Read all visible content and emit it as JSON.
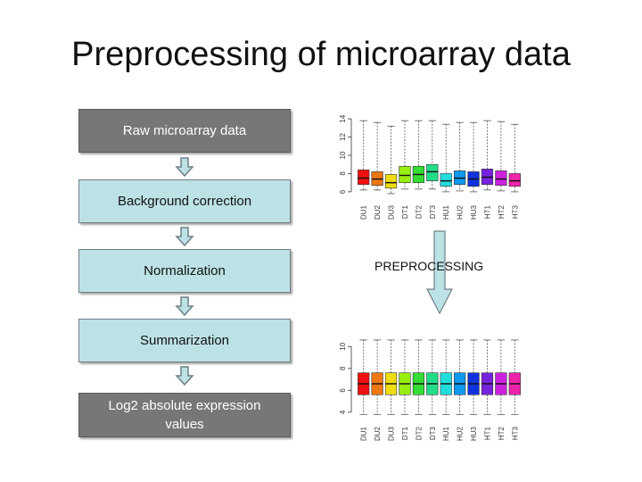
{
  "title": "Preprocessing of microarray data",
  "steps": [
    {
      "label": "Raw microarray data"
    },
    {
      "label": "Background correction"
    },
    {
      "label": "Normalization"
    },
    {
      "label": "Summarization"
    },
    {
      "label": "Log2 absolute expression values"
    }
  ],
  "arrow_label": "PREPROCESSING",
  "colors": {
    "dark_box": "#777777",
    "light_box": "#bde2e6",
    "arrow_fill": "#bde2e6",
    "arrow_stroke": "#6f7f86"
  },
  "chart_data": [
    {
      "type": "boxplot",
      "title": "",
      "xlabel": "",
      "ylabel": "",
      "ylim": [
        5.5,
        14.5
      ],
      "yticks": [
        6,
        8,
        10,
        12,
        14
      ],
      "categories": [
        "DU1",
        "DU2",
        "DU3",
        "DT1",
        "DT2",
        "DT3",
        "HU1",
        "HU2",
        "HU3",
        "HT1",
        "HT2",
        "HT3"
      ],
      "colors": [
        "#ee1111",
        "#ee7711",
        "#eedd11",
        "#99ee11",
        "#33dd33",
        "#22dd88",
        "#22dddd",
        "#1199ee",
        "#1133dd",
        "#7722dd",
        "#cc22dd",
        "#ee22aa"
      ],
      "series": [
        {
          "category": "DU1",
          "min": 6.2,
          "q1": 6.8,
          "median": 7.5,
          "q3": 8.4,
          "max": 13.8
        },
        {
          "category": "DU2",
          "min": 6.2,
          "q1": 6.7,
          "median": 7.4,
          "q3": 8.2,
          "max": 13.6
        },
        {
          "category": "DU3",
          "min": 5.8,
          "q1": 6.4,
          "median": 7.0,
          "q3": 7.9,
          "max": 13.2
        },
        {
          "category": "DT1",
          "min": 6.3,
          "q1": 7.0,
          "median": 7.8,
          "q3": 8.8,
          "max": 13.8
        },
        {
          "category": "DT2",
          "min": 6.3,
          "q1": 7.0,
          "median": 7.9,
          "q3": 8.8,
          "max": 13.8
        },
        {
          "category": "DT3",
          "min": 6.3,
          "q1": 7.2,
          "median": 8.2,
          "q3": 9.0,
          "max": 13.8
        },
        {
          "category": "HU1",
          "min": 6.0,
          "q1": 6.6,
          "median": 7.2,
          "q3": 8.0,
          "max": 13.4
        },
        {
          "category": "HU2",
          "min": 6.1,
          "q1": 6.8,
          "median": 7.5,
          "q3": 8.3,
          "max": 13.6
        },
        {
          "category": "HU3",
          "min": 6.0,
          "q1": 6.6,
          "median": 7.4,
          "q3": 8.2,
          "max": 13.6
        },
        {
          "category": "HT1",
          "min": 6.2,
          "q1": 6.8,
          "median": 7.6,
          "q3": 8.5,
          "max": 13.8
        },
        {
          "category": "HT2",
          "min": 6.1,
          "q1": 6.7,
          "median": 7.4,
          "q3": 8.3,
          "max": 13.7
        },
        {
          "category": "HT3",
          "min": 6.0,
          "q1": 6.6,
          "median": 7.2,
          "q3": 8.0,
          "max": 13.4
        }
      ]
    },
    {
      "type": "boxplot",
      "title": "",
      "xlabel": "",
      "ylabel": "",
      "ylim": [
        3.5,
        11.0
      ],
      "yticks": [
        4,
        6,
        8,
        10
      ],
      "categories": [
        "DU1",
        "DU2",
        "DU3",
        "DT1",
        "DT2",
        "DT3",
        "HU1",
        "HU2",
        "HU3",
        "HT1",
        "HT2",
        "HT3"
      ],
      "colors": [
        "#ee1111",
        "#ee7711",
        "#eedd11",
        "#99ee11",
        "#33dd33",
        "#22dd88",
        "#22dddd",
        "#1199ee",
        "#1133dd",
        "#7722dd",
        "#cc22dd",
        "#ee22aa"
      ],
      "series": [
        {
          "category": "DU1",
          "min": 3.8,
          "q1": 5.6,
          "median": 6.6,
          "q3": 7.6,
          "max": 10.6
        },
        {
          "category": "DU2",
          "min": 3.8,
          "q1": 5.6,
          "median": 6.6,
          "q3": 7.6,
          "max": 10.6
        },
        {
          "category": "DU3",
          "min": 3.8,
          "q1": 5.6,
          "median": 6.6,
          "q3": 7.6,
          "max": 10.6
        },
        {
          "category": "DT1",
          "min": 3.8,
          "q1": 5.6,
          "median": 6.6,
          "q3": 7.6,
          "max": 10.6
        },
        {
          "category": "DT2",
          "min": 3.8,
          "q1": 5.6,
          "median": 6.6,
          "q3": 7.6,
          "max": 10.6
        },
        {
          "category": "DT3",
          "min": 3.8,
          "q1": 5.6,
          "median": 6.6,
          "q3": 7.6,
          "max": 10.6
        },
        {
          "category": "HU1",
          "min": 3.8,
          "q1": 5.6,
          "median": 6.6,
          "q3": 7.6,
          "max": 10.6
        },
        {
          "category": "HU2",
          "min": 3.8,
          "q1": 5.6,
          "median": 6.6,
          "q3": 7.6,
          "max": 10.6
        },
        {
          "category": "HU3",
          "min": 3.8,
          "q1": 5.6,
          "median": 6.6,
          "q3": 7.6,
          "max": 10.6
        },
        {
          "category": "HT1",
          "min": 3.8,
          "q1": 5.6,
          "median": 6.6,
          "q3": 7.6,
          "max": 10.6
        },
        {
          "category": "HT2",
          "min": 3.8,
          "q1": 5.6,
          "median": 6.6,
          "q3": 7.6,
          "max": 10.6
        },
        {
          "category": "HT3",
          "min": 3.8,
          "q1": 5.6,
          "median": 6.6,
          "q3": 7.6,
          "max": 10.6
        }
      ]
    }
  ]
}
